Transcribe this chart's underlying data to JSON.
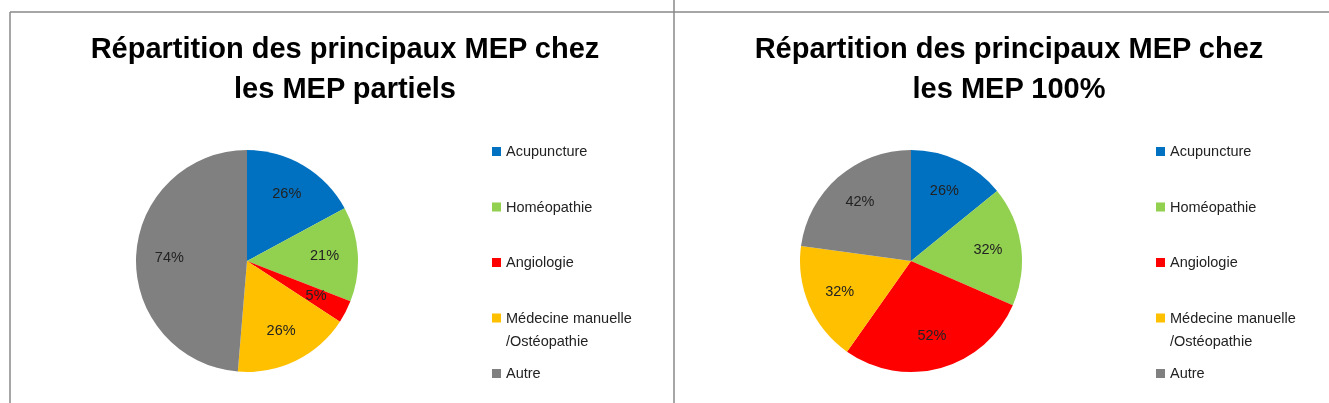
{
  "chart_data": [
    {
      "type": "pie",
      "title": "Répartition des principaux MEP chez les MEP partiels",
      "categories": [
        "Acupuncture",
        "Homéopathie",
        "Angiologie",
        "Médecine manuelle /Ostéopathie",
        "Autre"
      ],
      "values": [
        26,
        21,
        5,
        26,
        74
      ],
      "value_labels": [
        "26%",
        "21%",
        "5%",
        "26%",
        "74%"
      ],
      "colors": [
        "#0070c0",
        "#92d050",
        "#ff0000",
        "#ffc000",
        "#808080"
      ],
      "legend": "right"
    },
    {
      "type": "pie",
      "title": "Répartition des principaux MEP chez les MEP 100%",
      "categories": [
        "Acupuncture",
        "Homéopathie",
        "Angiologie",
        "Médecine manuelle /Ostéopathie",
        "Autre"
      ],
      "values": [
        26,
        32,
        52,
        32,
        42
      ],
      "value_labels": [
        "26%",
        "32%",
        "52%",
        "32%",
        "42%"
      ],
      "colors": [
        "#0070c0",
        "#92d050",
        "#ff0000",
        "#ffc000",
        "#808080"
      ],
      "legend": "right"
    }
  ]
}
